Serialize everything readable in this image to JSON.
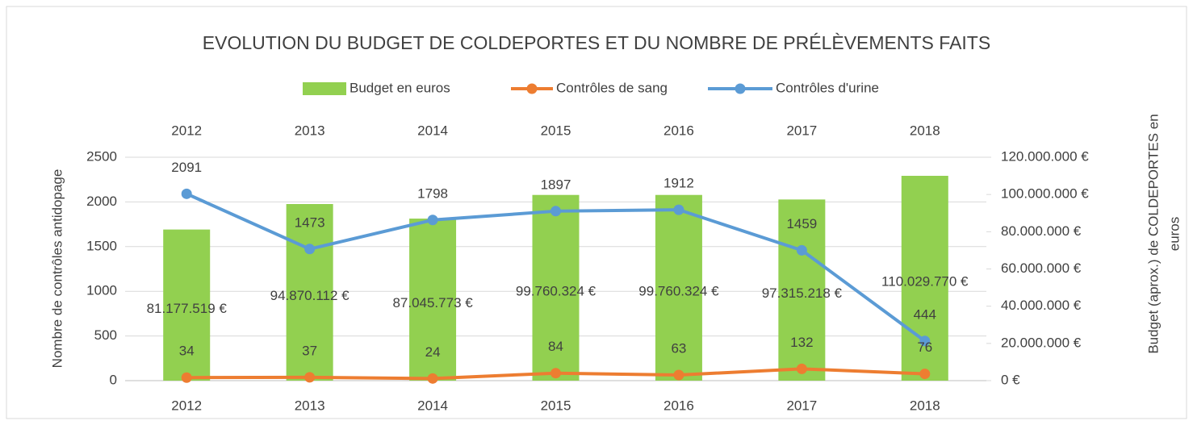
{
  "chart_data": {
    "type": "combo",
    "title": "EVOLUTION DU BUDGET DE COLDEPORTES ET DU NOMBRE DE PRÉLÈVEMENTS FAITS",
    "y_label": "Nombre de contrôles antidopage",
    "y2_label": [
      "Budget (aprox.) de COLDEPORTES en",
      "euros"
    ],
    "categories": [
      "2012",
      "2013",
      "2014",
      "2015",
      "2016",
      "2017",
      "2018"
    ],
    "series": [
      {
        "name": "Budget en euros",
        "type": "bar",
        "axis": "y2",
        "color": "#92d050",
        "values": [
          81177519,
          94870112,
          87045773,
          99760324,
          99760324,
          97315218,
          110029770
        ],
        "value_labels": [
          "81.177.519 €",
          "94.870.112 €",
          "87.045.773 €",
          "99.760.324 €",
          "99.760.324 €",
          "97.315.218 €",
          "110.029.770 €"
        ]
      },
      {
        "name": "Contrôles de sang",
        "type": "line",
        "color": "#ed7d31",
        "values": [
          34,
          37,
          24,
          84,
          63,
          132,
          76
        ]
      },
      {
        "name": "Contrôles d'urine",
        "type": "line",
        "color": "#5b9bd5",
        "values": [
          2091,
          1473,
          1798,
          1897,
          1912,
          1459,
          444
        ]
      }
    ],
    "ylim": [
      0,
      2500
    ],
    "yticks": [
      0,
      500,
      1000,
      1500,
      2000,
      2500
    ],
    "y2lim": [
      0,
      120000000
    ],
    "y2ticks": [
      {
        "value": 0,
        "label": "0 €"
      },
      {
        "value": 20000000,
        "label": "20.000.000 €"
      },
      {
        "value": 40000000,
        "label": "40.000.000 €"
      },
      {
        "value": 60000000,
        "label": "60.000.000 €"
      },
      {
        "value": 80000000,
        "label": "80.000.000 €"
      },
      {
        "value": 100000000,
        "label": "100.000.000 €"
      },
      {
        "value": 120000000,
        "label": "120.000.000 €"
      }
    ],
    "grid": true,
    "legend": "top"
  }
}
